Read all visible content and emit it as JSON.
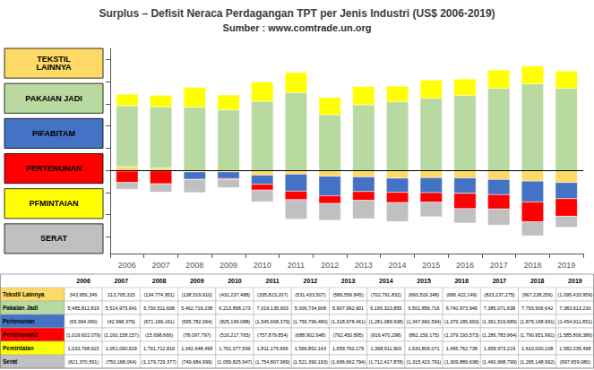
{
  "chart_data": {
    "type": "bar",
    "title": "Surplus – Defisit Neraca Perdagangan TPT per Jenis Industri (US$ 2006-2019)",
    "subtitle": "Sumber : www.comtrade.un.org",
    "categories": [
      2006,
      2007,
      2008,
      2009,
      2010,
      2011,
      2012,
      2013,
      2014,
      2015,
      2016,
      2017,
      2018,
      2019
    ],
    "stacked": true,
    "series": [
      {
        "name": "Tekstil Lainnya",
        "color": "#FFD966",
        "values": [
          343956349,
          213705315,
          -134774951,
          -138519910,
          -431237488,
          -335823207,
          -531433507,
          -586556845,
          -702791832,
          -660519348,
          -686422149,
          -823237275,
          -967228256,
          -1095433959
        ],
        "value_labels": [
          "343,956,349",
          "213,705,315",
          "(134,774,951)",
          "(138,519,910)",
          "(431,237,488)",
          "(335,823,207)",
          "(531,433,507)",
          "(586,556,845)",
          "(702,791,832)",
          "(660,519,348)",
          "(686,422,149)",
          "(823,237,275)",
          "(967,228,256)",
          "(1,095,433,959)"
        ]
      },
      {
        "name": "Pakaian Jadi",
        "color": "#B8D9A0",
        "values": [
          5485812819,
          5514975641,
          5700511608,
          5462719238,
          6213858173,
          7019135903,
          5006734908,
          5907992901,
          6195323855,
          6501856716,
          6740973946,
          7385071638,
          7793906642,
          7383913230
        ],
        "value_labels": [
          "5,485,812,819",
          "5,514,975,641",
          "5,700,511,608",
          "5,462,719,238",
          "6,213,858,173",
          "7,019,135,903",
          "5,006,734,908",
          "5,907,992,901",
          "6,195,323,855",
          "6,501,856,716",
          "6,740,973,946",
          "7,385,071,638",
          "7,793,906,642",
          "7,383,913,230"
        ]
      },
      {
        "name": "Pertenunan",
        "color": "#4472C4",
        "values": [
          -65994060,
          -42998379,
          -671199161,
          -595782064,
          -825199088,
          -1545668379,
          -1756796480,
          -1318978461,
          -1281089938,
          -1347660594,
          -1379185693,
          -1361519689,
          -1879168991,
          -1454911851
        ],
        "value_labels": [
          "(65,994,060)",
          "(42,998,379)",
          "(671,199,161)",
          "(595,782,064)",
          "(825,199,088)",
          "(1,545,668,379)",
          "(1,756,796,480)",
          "(1,318,978,461)",
          "(1,281,089,938)",
          "(1,347,660,594)",
          "(1,379,185,693)",
          "(1,361,519,689)",
          "(1,879,168,991)",
          "(1,454,911,851)"
        ]
      },
      {
        "name": "Pertenunan2",
        "color": "#FF0000",
        "values": [
          -1019602079,
          -1160158157,
          -15698666,
          -78097797,
          -516217765,
          -757879854,
          -688902648,
          -792450895,
          -916470298,
          -861156175,
          -1379193573,
          -1286783964,
          -1790951991,
          -1585806386
        ],
        "value_labels": [
          "(1,019,602,079)",
          "(1,160,158,157)",
          "(15,698,666)",
          "(78,097,797)",
          "(516,217,765)",
          "(757,879,854)",
          "(688,902,648)",
          "(792,450,895)",
          "(916,470,298)",
          "(861,156,175)",
          "(1,379,193,573)",
          "(1,286,783,964)",
          "(1,790,951,991)",
          "(1,585,806,386)"
        ]
      },
      {
        "name": "Pemintalan",
        "color": "#FFFF00",
        "values": [
          1033798915,
          1051090629,
          1791712816,
          1342648499,
          1761077599,
          1811179969,
          1566852143,
          1659760179,
          1398911900,
          1630809071,
          1495762738,
          1659973219,
          1610000108,
          1582035498
        ],
        "value_labels": [
          "1,033,798,915",
          "1,051,090,629",
          "1,791,712,816",
          "1,342,648,499",
          "1,761,077,599",
          "1,811,179,969",
          "1,566,852,143",
          "1,659,760,179",
          "1,398,911,900",
          "1,630,809,071",
          "1,495,762,738",
          "1,659,973,219",
          "1,610,000,108",
          "1,582,035,498"
        ]
      },
      {
        "name": "Serat",
        "color": "#C0C0C0",
        "values": [
          -621370591,
          -750168064,
          -1179729377,
          -749684999,
          -1059825947,
          -1754807969,
          -1521390193,
          -1666662794,
          -1712417878,
          -1315423791,
          -1309889638,
          -1460968799,
          -1265148992,
          -997659080
        ],
        "value_labels": [
          "(621,370,591)",
          "(750,168,064)",
          "(1,179,729,377)",
          "(749,684,999)",
          "(1,059,825,947)",
          "(1,754,807,969)",
          "(1,521,390,193)",
          "(1,666,662,794)",
          "(1,712,417,878)",
          "(1,315,423,791)",
          "(1,309,889,638)",
          "(1,460,968,799)",
          "(1,265,148,992)",
          "(997,659,080)"
        ]
      }
    ],
    "legend_labels": [
      "TEKSTIL\nLAINNYA",
      "PAKAIAN JADI",
      "PIFABITAM",
      "PERTENUNAN",
      "PFMINTAIAN",
      "SERAT"
    ],
    "ylim": [
      -7500000000,
      11000000000
    ],
    "yticks": [
      -6000000000,
      -4000000000,
      -2000000000,
      0,
      2000000000,
      4000000000,
      6000000000,
      8000000000,
      10000000000
    ],
    "grid": false,
    "tick_labels": "x"
  }
}
